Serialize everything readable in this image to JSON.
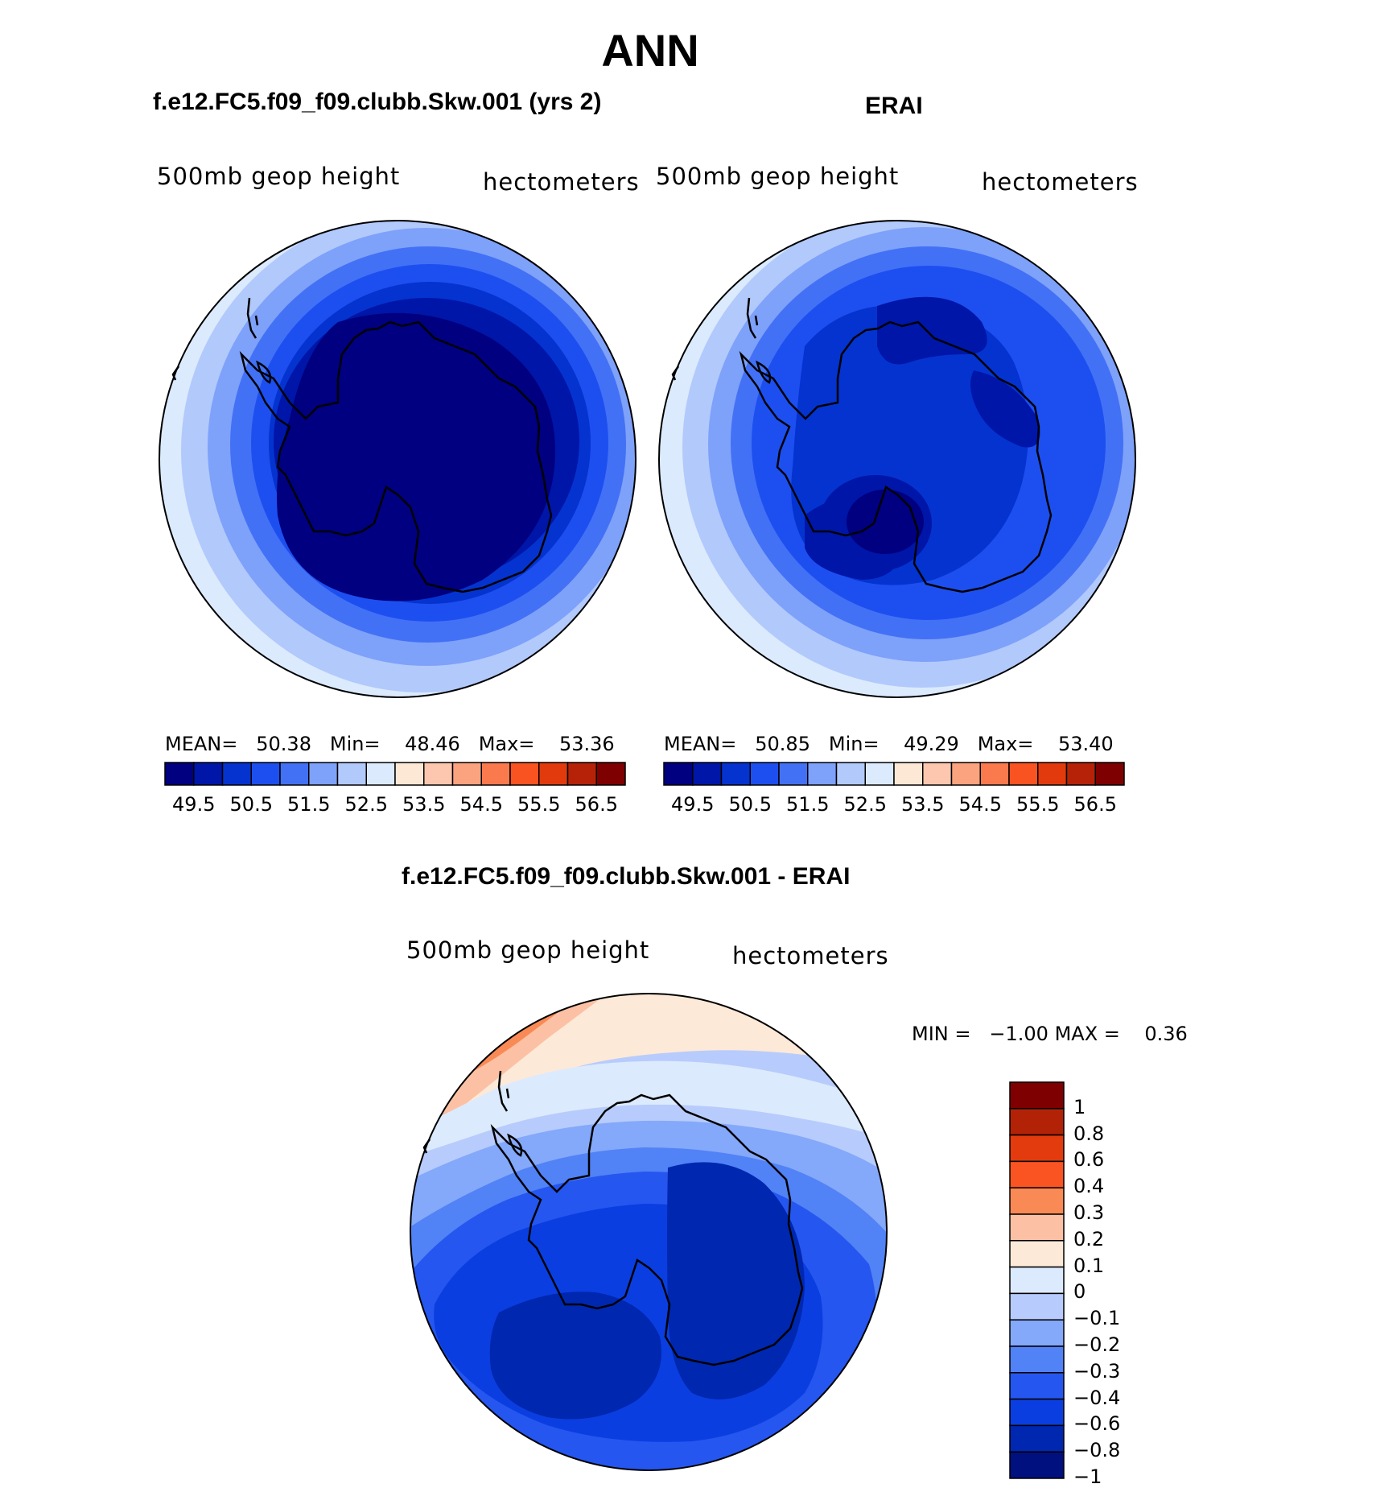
{
  "figure_title": "ANN",
  "panels": {
    "model": {
      "case_title": "f.e12.FC5.f09_f09.clubb.Skw.001 (yrs 2)",
      "var_label": "500mb  geop  height",
      "units_label": "hectometers",
      "stats": {
        "mean_label": "MEAN=",
        "mean_value": "50.38",
        "min_label": "Min=",
        "min_value": "48.46",
        "max_label": "Max=",
        "max_value": "53.36"
      }
    },
    "obs": {
      "case_title": "ERAI",
      "var_label": "500mb  geop  height",
      "units_label": "hectometers",
      "stats": {
        "mean_label": "MEAN=",
        "mean_value": "50.85",
        "min_label": "Min=",
        "min_value": "49.29",
        "max_label": "Max=",
        "max_value": "53.40"
      }
    },
    "diff": {
      "case_title": "f.e12.FC5.f09_f09.clubb.Skw.001 - ERAI",
      "var_label": "500mb  geop  height",
      "units_label": "hectometers",
      "stats": {
        "min_label": "MIN =",
        "min_value": "−1.00",
        "max_label": "MAX =",
        "max_value": "0.36"
      }
    }
  },
  "abs_colorbar": {
    "colors": [
      "#000080",
      "#0016a8",
      "#0533cf",
      "#1d4ff0",
      "#4271f6",
      "#7ea1fa",
      "#b2c9fc",
      "#dbeafd",
      "#fde8d6",
      "#fcc7ae",
      "#fba37f",
      "#fa7a4d",
      "#fa5322",
      "#e23a0d",
      "#b62208",
      "#7f0000"
    ],
    "ticks": [
      "49.5",
      "50.5",
      "51.5",
      "52.5",
      "53.5",
      "54.5",
      "55.5",
      "56.5"
    ]
  },
  "diff_colorbar": {
    "colors": [
      "#00107e",
      "#0027b0",
      "#0b3ee0",
      "#2556ef",
      "#5182f6",
      "#84a8fa",
      "#b7ccfc",
      "#dceafd",
      "#fde9d8",
      "#fcc1a4",
      "#fa8a55",
      "#fa5423",
      "#e33b0d",
      "#b22206",
      "#7f0000"
    ],
    "ticks": [
      "1",
      "0.8",
      "0.6",
      "0.4",
      "0.3",
      "0.2",
      "0.1",
      "0",
      "−0.1",
      "−0.2",
      "−0.3",
      "−0.4",
      "−0.6",
      "−0.8",
      "−1"
    ]
  },
  "chart_data": [
    {
      "type": "heatmap",
      "title": "f.e12.FC5.f09_f09.clubb.Skw.001 (yrs 2)",
      "variable": "500mb geop height",
      "units": "hectometers",
      "projection": "south polar stereographic",
      "mean": 50.38,
      "min": 48.46,
      "max": 53.36,
      "contour_levels": [
        49.5,
        50,
        50.5,
        51,
        51.5,
        52,
        52.5,
        53,
        53.5,
        54,
        54.5,
        55,
        55.5,
        56,
        56.5
      ]
    },
    {
      "type": "heatmap",
      "title": "ERAI",
      "variable": "500mb geop height",
      "units": "hectometers",
      "projection": "south polar stereographic",
      "mean": 50.85,
      "min": 49.29,
      "max": 53.4,
      "contour_levels": [
        49.5,
        50,
        50.5,
        51,
        51.5,
        52,
        52.5,
        53,
        53.5,
        54,
        54.5,
        55,
        55.5,
        56,
        56.5
      ]
    },
    {
      "type": "heatmap",
      "title": "f.e12.FC5.f09_f09.clubb.Skw.001 - ERAI",
      "variable": "500mb geop height",
      "units": "hectometers",
      "projection": "south polar stereographic",
      "min": -1.0,
      "max": 0.36,
      "contour_levels": [
        -1,
        -0.8,
        -0.6,
        -0.4,
        -0.3,
        -0.2,
        -0.1,
        0,
        0.1,
        0.2,
        0.3,
        0.4,
        0.6,
        0.8,
        1
      ]
    }
  ]
}
